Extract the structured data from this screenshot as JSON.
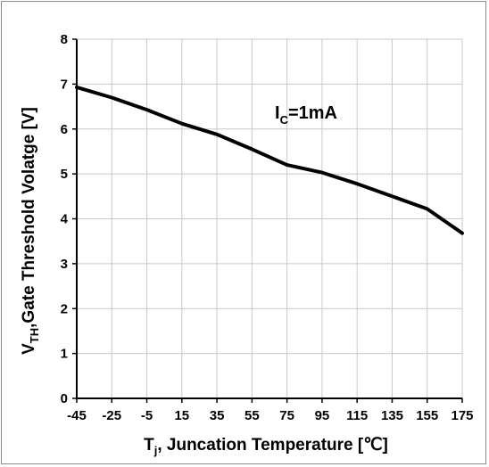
{
  "chart_data": {
    "type": "line",
    "title": "",
    "xlabel": {
      "main": "T",
      "sub": "j",
      "rest": ", Juncation Temperature [℃]"
    },
    "ylabel": {
      "main": "V",
      "sub": "TH",
      "rest": ",Gate Threshold Volatge [V]"
    },
    "xlim": [
      -45,
      175
    ],
    "ylim": [
      0,
      8
    ],
    "x_ticks": [
      "-45",
      "-25",
      "-5",
      "15",
      "35",
      "55",
      "75",
      "95",
      "115",
      "135",
      "155",
      "175"
    ],
    "y_ticks": [
      "0",
      "1",
      "2",
      "3",
      "4",
      "5",
      "6",
      "7",
      "8"
    ],
    "grid": true,
    "annotation": {
      "main": "I",
      "sub": "C",
      "rest": "=1mA"
    },
    "series": [
      {
        "x": [
          -45,
          -25,
          -5,
          15,
          35,
          55,
          75,
          95,
          115,
          135,
          155,
          175
        ],
        "y": [
          6.93,
          6.7,
          6.43,
          6.12,
          5.88,
          5.55,
          5.2,
          5.03,
          4.78,
          4.5,
          4.22,
          3.68
        ]
      }
    ],
    "colors": {
      "line": "#000000",
      "grid": "#c8c8c8",
      "axis": "#000000"
    }
  }
}
